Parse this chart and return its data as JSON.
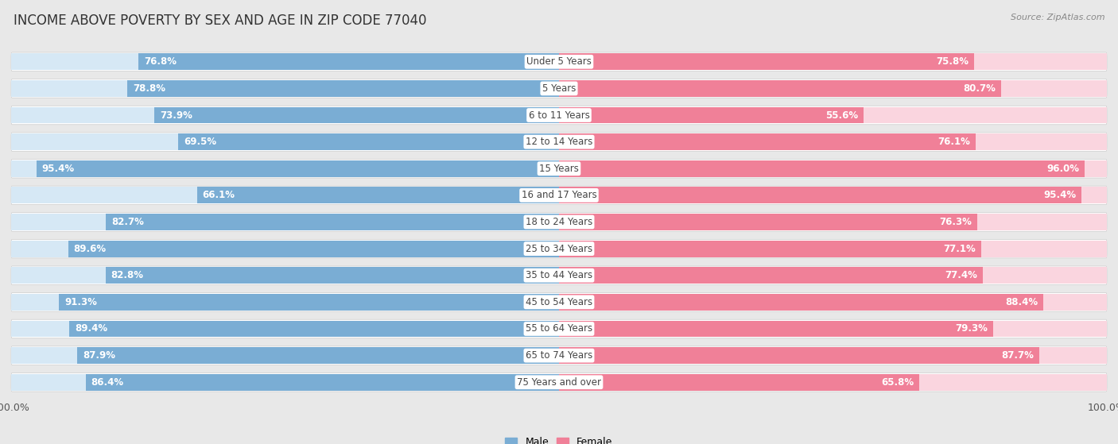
{
  "title": "INCOME ABOVE POVERTY BY SEX AND AGE IN ZIP CODE 77040",
  "source": "Source: ZipAtlas.com",
  "categories": [
    "Under 5 Years",
    "5 Years",
    "6 to 11 Years",
    "12 to 14 Years",
    "15 Years",
    "16 and 17 Years",
    "18 to 24 Years",
    "25 to 34 Years",
    "35 to 44 Years",
    "45 to 54 Years",
    "55 to 64 Years",
    "65 to 74 Years",
    "75 Years and over"
  ],
  "male": [
    76.8,
    78.8,
    73.9,
    69.5,
    95.4,
    66.1,
    82.7,
    89.6,
    82.8,
    91.3,
    89.4,
    87.9,
    86.4
  ],
  "female": [
    75.8,
    80.7,
    55.6,
    76.1,
    96.0,
    95.4,
    76.3,
    77.1,
    77.4,
    88.4,
    79.3,
    87.7,
    65.8
  ],
  "male_color": "#7aadd4",
  "female_color": "#f08098",
  "male_bg_color": "#d6e8f5",
  "female_bg_color": "#fad5df",
  "bg_color": "#e8e8e8",
  "row_bg_color": "#ffffff",
  "title_fontsize": 12,
  "label_fontsize": 8.5,
  "axis_fontsize": 9,
  "bar_height": 0.62,
  "max_val": 100.0
}
